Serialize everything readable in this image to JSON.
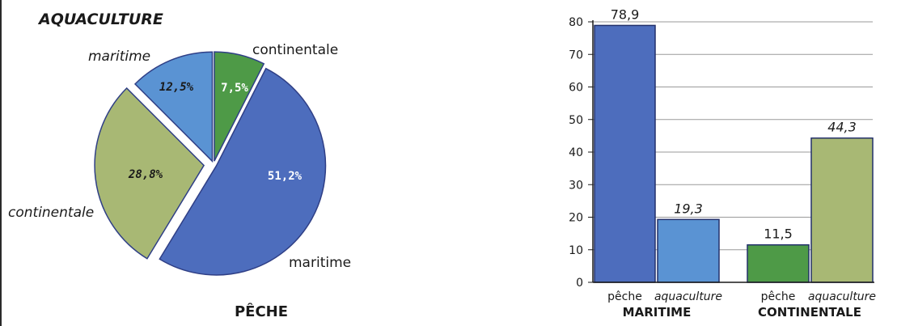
{
  "chart_data": [
    {
      "type": "pie",
      "top_label": "AQUACULTURE",
      "bottom_label": "PÊCHE",
      "slices": [
        {
          "label": "continentale",
          "value": 7.5,
          "value_label": "7,5%",
          "group": "aquaculture",
          "color": "#4e9a47"
        },
        {
          "label": "maritime",
          "value": 51.2,
          "value_label": "51,2%",
          "group": "pêche",
          "color": "#4d6dbd"
        },
        {
          "label": "continentale",
          "value": 28.8,
          "value_label": "28,8%",
          "group": "pêche",
          "color": "#a8b874"
        },
        {
          "label": "maritime",
          "value": 12.5,
          "value_label": "12,5%",
          "group": "aquaculture",
          "color": "#5a93d3"
        }
      ]
    },
    {
      "type": "bar",
      "ylim": [
        0,
        80
      ],
      "yticks": [
        0,
        10,
        20,
        30,
        40,
        50,
        60,
        70,
        80
      ],
      "grid": true,
      "groups": [
        {
          "name": "MARITIME",
          "bars": [
            {
              "category": "pêche",
              "value": 78.9,
              "value_label": "78,9",
              "color": "#4d6dbd"
            },
            {
              "category": "aquaculture",
              "value": 19.3,
              "value_label": "19,3",
              "color": "#5a93d3"
            }
          ]
        },
        {
          "name": "CONTINENTALE",
          "bars": [
            {
              "category": "pêche",
              "value": 11.5,
              "value_label": "11,5",
              "color": "#4e9a47"
            },
            {
              "category": "aquaculture",
              "value": 44.3,
              "value_label": "44,3",
              "color": "#a8b874"
            }
          ]
        }
      ]
    }
  ]
}
